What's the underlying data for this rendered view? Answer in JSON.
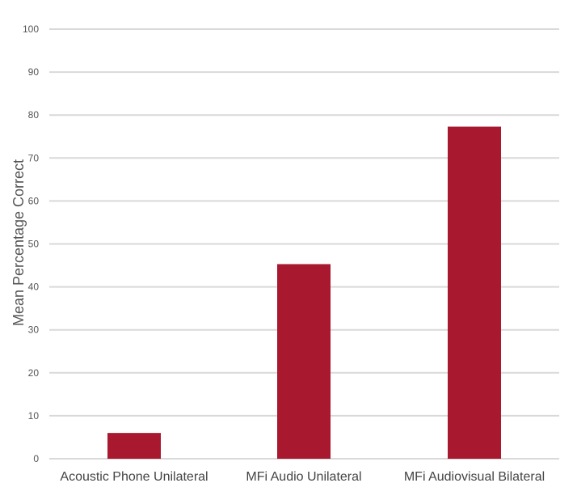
{
  "chart_data": {
    "type": "bar",
    "title": "",
    "xlabel": "",
    "ylabel": "Mean Percentage Correct",
    "categories": [
      "Acoustic Phone Unilateral",
      "MFi Audio Unilateral",
      "MFi Audiovisual Bilateral"
    ],
    "values": [
      6,
      45.3,
      77.3
    ],
    "ylim": [
      0,
      100
    ],
    "yticks": [
      0,
      10,
      20,
      30,
      40,
      50,
      60,
      70,
      80,
      90,
      100
    ],
    "grid": true,
    "legend": "none",
    "colors": {
      "bar": "#a8182e",
      "grid": "#d9d9d9"
    }
  }
}
